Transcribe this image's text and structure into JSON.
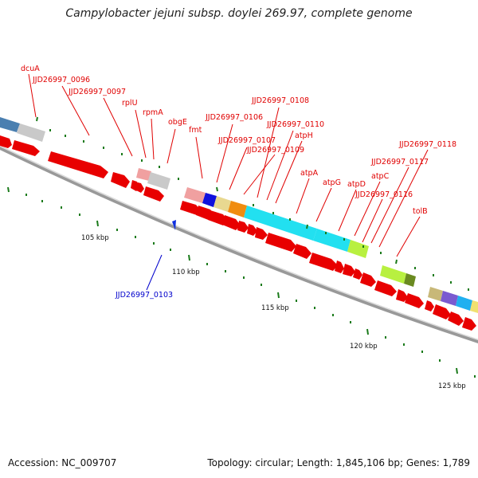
{
  "title": "Campylobacter jejuni subsp. doylei 269.97, complete genome",
  "accession": "Accession: NC_009707",
  "topology": "Topology: circular; Length: 1,845,106 bp; Genes: 1,789",
  "scale_labels": [
    "105 kbp",
    "110 kbp",
    "115 kbp",
    "120 kbp",
    "125 kbp"
  ],
  "gene_labels": [
    "dcuA",
    "JJD26997_0096",
    "JJD26997_0097",
    "rplU",
    "rpmA",
    "obgE",
    "fmt",
    "JJD26997_0106",
    "JJD26997_0108",
    "JJD26997_0107",
    "JJD26997_0110",
    "atpH",
    "JJD26997_0109",
    "atpA",
    "atpG",
    "atpD",
    "atpC",
    "JJD26997_0116",
    "JJD26997_0117",
    "JJD26997_0118",
    "tolB",
    "JJD26997_0103"
  ],
  "colors": {
    "forward_gene": "#e80000",
    "label_red": "#e00000",
    "label_blue": "#0000cc",
    "backbone": "#888888",
    "tick_green": "#1a7a1a"
  }
}
